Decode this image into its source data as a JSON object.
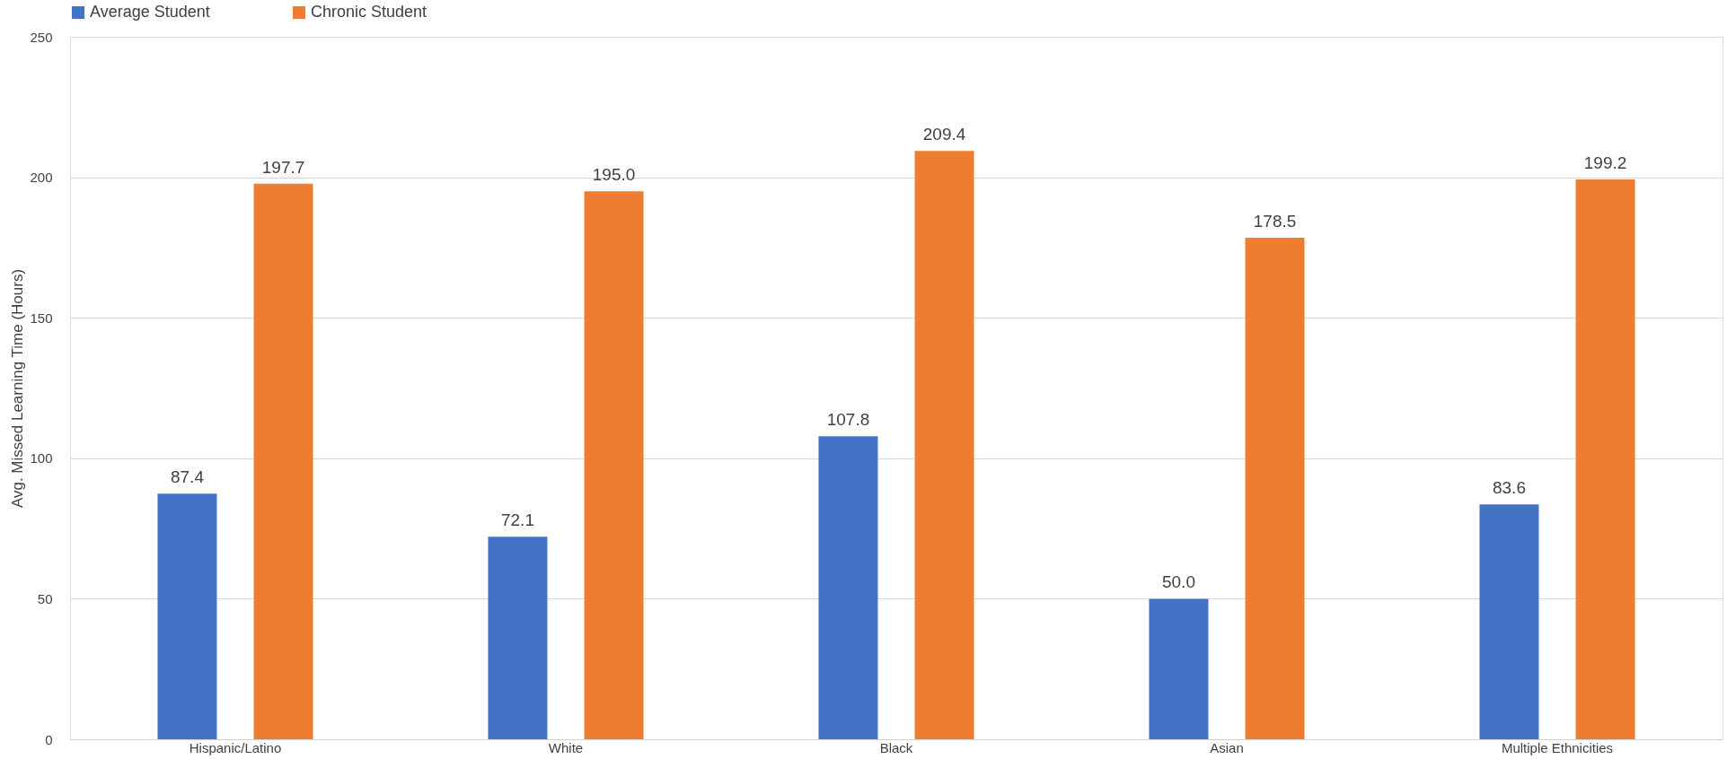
{
  "chart_data": {
    "type": "bar",
    "ylabel": "Avg. Missed Learning Time (Hours)",
    "categories": [
      "Hispanic/Latino",
      "White",
      "Black",
      "Asian",
      "Multiple Ethnicities"
    ],
    "series": [
      {
        "name": "Average Student",
        "color": "#4472c4",
        "values": [
          87.4,
          72.1,
          107.8,
          50.0,
          83.6
        ],
        "value_labels": [
          "87.4",
          "72.1",
          "107.8",
          "50.0",
          "83.6"
        ]
      },
      {
        "name": "Chronic Student",
        "color": "#ed7d31",
        "values": [
          197.7,
          195.0,
          209.4,
          178.5,
          199.2
        ],
        "value_labels": [
          "197.7",
          "195.0",
          "209.4",
          "178.5",
          "199.2"
        ]
      }
    ],
    "ylim": [
      0,
      250
    ],
    "yticks": [
      0,
      50,
      100,
      150,
      200,
      250
    ],
    "grid": "y",
    "legend": "top left"
  }
}
